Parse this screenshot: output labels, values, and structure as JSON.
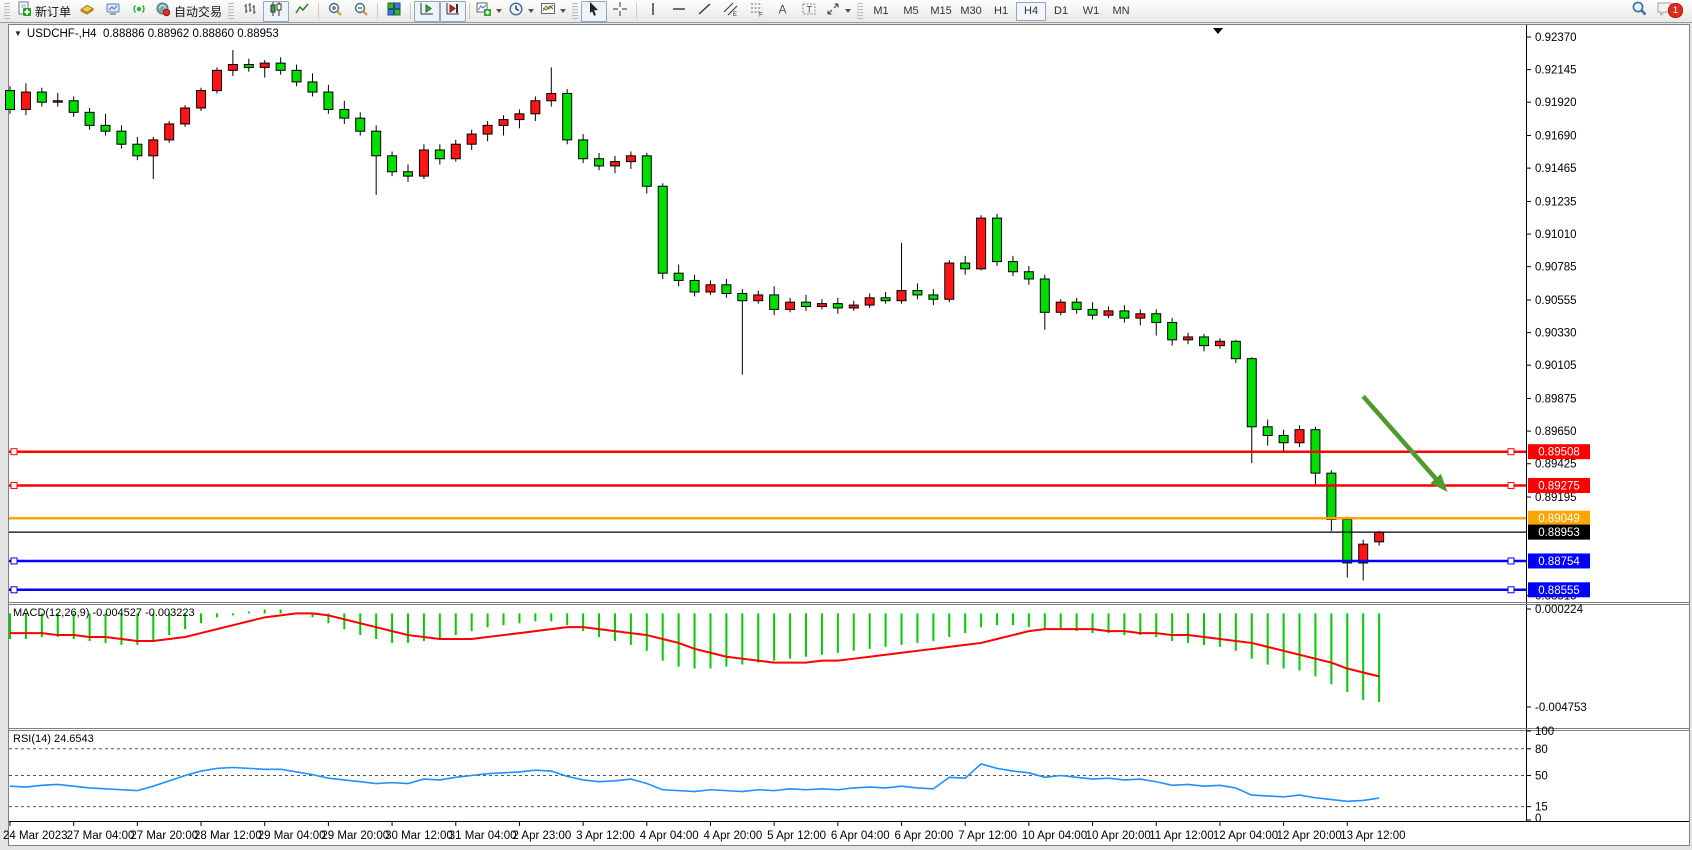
{
  "toolbar": {
    "new_order": "新订单",
    "auto_trading": "自动交易",
    "timeframes": [
      "M1",
      "M5",
      "M15",
      "M30",
      "H1",
      "H4",
      "D1",
      "W1",
      "MN"
    ],
    "active_timeframe": "H4",
    "notification_count": "1"
  },
  "chart_header": {
    "symbol": "USDCHF-,H4",
    "ohlc": "0.88886 0.88962 0.88860 0.88953"
  },
  "chart_data": {
    "type": "candlestick",
    "symbol": "USDCHF-",
    "timeframe": "H4",
    "current_ohlc": {
      "open": 0.88886,
      "high": 0.88962,
      "low": 0.8886,
      "close": 0.88953
    },
    "colors": {
      "bull": "#ff1414",
      "bear": "#00dd00",
      "wick": "#000000",
      "macd_hist": "#00cc00",
      "macd_signal": "#ff0000",
      "rsi_line": "#1e90ff",
      "line_red": "#ff0000",
      "line_orange": "#ffa500",
      "line_blue": "#0000ff",
      "bid_line": "#000000",
      "arrow": "#4e9a2e"
    },
    "price_axis_ticks": [
      {
        "label": "0.92370",
        "value": 0.9237
      },
      {
        "label": "0.92145",
        "value": 0.92145
      },
      {
        "label": "0.91920",
        "value": 0.9192
      },
      {
        "label": "0.91690",
        "value": 0.9169
      },
      {
        "label": "0.91465",
        "value": 0.91465
      },
      {
        "label": "0.91235",
        "value": 0.91235
      },
      {
        "label": "0.91010",
        "value": 0.9101
      },
      {
        "label": "0.90785",
        "value": 0.90785
      },
      {
        "label": "0.90555",
        "value": 0.90555
      },
      {
        "label": "0.90330",
        "value": 0.9033
      },
      {
        "label": "0.90105",
        "value": 0.90105
      },
      {
        "label": "0.89875",
        "value": 0.89875
      },
      {
        "label": "0.89650",
        "value": 0.8965
      },
      {
        "label": "0.89425",
        "value": 0.89425
      },
      {
        "label": "0.89195",
        "value": 0.89195
      },
      {
        "label": "0.88515",
        "value": 0.88515
      }
    ],
    "price_lines": [
      {
        "label": "0.89508",
        "value": 0.89508,
        "color": "#ff0000",
        "handles": true,
        "bid": false
      },
      {
        "label": "0.89275",
        "value": 0.89275,
        "color": "#ff0000",
        "handles": true,
        "bid": false
      },
      {
        "label": "0.89049",
        "value": 0.89049,
        "color": "#ffa500",
        "handles": false,
        "bid": false
      },
      {
        "label": "0.88953",
        "value": 0.88953,
        "color": "#000000",
        "handles": false,
        "bid": true
      },
      {
        "label": "0.88754",
        "value": 0.88754,
        "color": "#0000ff",
        "handles": true,
        "bid": false
      },
      {
        "label": "0.88555",
        "value": 0.88555,
        "color": "#0000ff",
        "handles": true,
        "bid": false
      }
    ],
    "x_labels": [
      "24 Mar 2023",
      "27 Mar 04:00",
      "27 Mar 20:00",
      "28 Mar 12:00",
      "29 Mar 04:00",
      "29 Mar 20:00",
      "30 Mar 12:00",
      "31 Mar 04:00",
      "2 Apr 23:00",
      "3 Apr 12:00",
      "4 Apr 04:00",
      "4 Apr 20:00",
      "5 Apr 12:00",
      "6 Apr 04:00",
      "6 Apr 20:00",
      "7 Apr 12:00",
      "10 Apr 04:00",
      "10 Apr 20:00",
      "11 Apr 12:00",
      "12 Apr 04:00",
      "12 Apr 20:00",
      "13 Apr 12:00"
    ],
    "candles": [
      [
        0.92,
        0.9203,
        0.9184,
        0.9187
      ],
      [
        0.9187,
        0.9205,
        0.9183,
        0.9199
      ],
      [
        0.9199,
        0.9202,
        0.9189,
        0.9192
      ],
      [
        0.9192,
        0.91985,
        0.9189,
        0.9193
      ],
      [
        0.9193,
        0.9196,
        0.9182,
        0.9185
      ],
      [
        0.9185,
        0.9188,
        0.9173,
        0.9176
      ],
      [
        0.9176,
        0.9184,
        0.9169,
        0.9172
      ],
      [
        0.9172,
        0.9176,
        0.916,
        0.9163
      ],
      [
        0.9163,
        0.9168,
        0.9152,
        0.9155
      ],
      [
        0.9155,
        0.9168,
        0.9139,
        0.9166
      ],
      [
        0.9166,
        0.9179,
        0.9164,
        0.9177
      ],
      [
        0.9177,
        0.919,
        0.9175,
        0.9188
      ],
      [
        0.9188,
        0.9202,
        0.9186,
        0.92
      ],
      [
        0.92,
        0.9216,
        0.9198,
        0.9214
      ],
      [
        0.9214,
        0.9228,
        0.921,
        0.9218
      ],
      [
        0.9218,
        0.9222,
        0.9213,
        0.9216
      ],
      [
        0.9216,
        0.9221,
        0.9209,
        0.9219
      ],
      [
        0.9219,
        0.9223,
        0.9211,
        0.9214
      ],
      [
        0.9214,
        0.9218,
        0.9203,
        0.9206
      ],
      [
        0.9206,
        0.9212,
        0.9196,
        0.9199
      ],
      [
        0.9199,
        0.9204,
        0.9184,
        0.9187
      ],
      [
        0.9187,
        0.9193,
        0.9177,
        0.9181
      ],
      [
        0.9181,
        0.9185,
        0.9169,
        0.9172
      ],
      [
        0.9172,
        0.9176,
        0.9128,
        0.9155
      ],
      [
        0.9155,
        0.9158,
        0.9141,
        0.9144
      ],
      [
        0.9144,
        0.9149,
        0.9137,
        0.9141
      ],
      [
        0.9141,
        0.9163,
        0.9139,
        0.9159
      ],
      [
        0.9159,
        0.9163,
        0.9149,
        0.9153
      ],
      [
        0.9153,
        0.9166,
        0.9151,
        0.9163
      ],
      [
        0.9163,
        0.9173,
        0.9159,
        0.917
      ],
      [
        0.917,
        0.9179,
        0.9165,
        0.9176
      ],
      [
        0.9176,
        0.9183,
        0.9169,
        0.918
      ],
      [
        0.918,
        0.9187,
        0.9174,
        0.9184
      ],
      [
        0.9184,
        0.9196,
        0.9179,
        0.9193
      ],
      [
        0.9193,
        0.9216,
        0.9189,
        0.9198
      ],
      [
        0.9198,
        0.9201,
        0.9163,
        0.9166
      ],
      [
        0.9166,
        0.917,
        0.915,
        0.9153
      ],
      [
        0.9153,
        0.9157,
        0.9145,
        0.9148
      ],
      [
        0.9148,
        0.9155,
        0.9143,
        0.9151
      ],
      [
        0.9151,
        0.9158,
        0.9146,
        0.9155
      ],
      [
        0.9155,
        0.9157,
        0.9129,
        0.9134
      ],
      [
        0.9134,
        0.9136,
        0.907,
        0.9074
      ],
      [
        0.9074,
        0.908,
        0.9065,
        0.9069
      ],
      [
        0.9069,
        0.9073,
        0.9058,
        0.9061
      ],
      [
        0.9061,
        0.9069,
        0.9059,
        0.9066
      ],
      [
        0.9066,
        0.907,
        0.9057,
        0.906
      ],
      [
        0.906,
        0.9063,
        0.9004,
        0.9055
      ],
      [
        0.9055,
        0.9062,
        0.9053,
        0.9059
      ],
      [
        0.9059,
        0.9065,
        0.9045,
        0.9049
      ],
      [
        0.9049,
        0.9057,
        0.9047,
        0.9054
      ],
      [
        0.9054,
        0.9059,
        0.9048,
        0.9051
      ],
      [
        0.9051,
        0.9056,
        0.9049,
        0.9053
      ],
      [
        0.9053,
        0.9057,
        0.9046,
        0.905
      ],
      [
        0.905,
        0.9055,
        0.9048,
        0.9052
      ],
      [
        0.9052,
        0.906,
        0.905,
        0.9057
      ],
      [
        0.9057,
        0.9061,
        0.9053,
        0.9055
      ],
      [
        0.9055,
        0.9095,
        0.9053,
        0.9062
      ],
      [
        0.9062,
        0.9067,
        0.9056,
        0.9059
      ],
      [
        0.9059,
        0.9063,
        0.9052,
        0.9056
      ],
      [
        0.9056,
        0.9083,
        0.9054,
        0.9081
      ],
      [
        0.9081,
        0.9086,
        0.9073,
        0.9077
      ],
      [
        0.9077,
        0.9114,
        0.9076,
        0.9112
      ],
      [
        0.9112,
        0.9115,
        0.9079,
        0.9082
      ],
      [
        0.9082,
        0.9086,
        0.9072,
        0.9075
      ],
      [
        0.9075,
        0.9079,
        0.9066,
        0.907
      ],
      [
        0.907,
        0.9073,
        0.9035,
        0.9047
      ],
      [
        0.9047,
        0.9056,
        0.9045,
        0.9054
      ],
      [
        0.9054,
        0.9057,
        0.9046,
        0.9049
      ],
      [
        0.9049,
        0.9054,
        0.9042,
        0.9045
      ],
      [
        0.9045,
        0.9051,
        0.9043,
        0.9048
      ],
      [
        0.9048,
        0.9052,
        0.904,
        0.9043
      ],
      [
        0.9043,
        0.9049,
        0.9038,
        0.9046
      ],
      [
        0.9046,
        0.9049,
        0.9031,
        0.904
      ],
      [
        0.904,
        0.9043,
        0.9024,
        0.9028
      ],
      [
        0.9028,
        0.9033,
        0.9025,
        0.903
      ],
      [
        0.903,
        0.9032,
        0.902,
        0.9024
      ],
      [
        0.9024,
        0.9029,
        0.9022,
        0.9027
      ],
      [
        0.9027,
        0.9028,
        0.9012,
        0.9015
      ],
      [
        0.9015,
        0.9016,
        0.8943,
        0.8968
      ],
      [
        0.8968,
        0.8973,
        0.8955,
        0.8962
      ],
      [
        0.8962,
        0.8966,
        0.895,
        0.8957
      ],
      [
        0.8957,
        0.8969,
        0.8954,
        0.8966
      ],
      [
        0.8966,
        0.8968,
        0.8927,
        0.8936
      ],
      [
        0.8936,
        0.8938,
        0.8896,
        0.8904
      ],
      [
        0.8904,
        0.8906,
        0.8864,
        0.8874
      ],
      [
        0.8874,
        0.889,
        0.8862,
        0.8887
      ],
      [
        0.88886,
        0.88962,
        0.8886,
        0.88953
      ]
    ],
    "macd": {
      "label": "MACD(12,26,9)",
      "values_text": "-0.004527 -0.003223",
      "axis_max": "0.000224",
      "axis_min": "-0.004753",
      "hist": [
        -0.0013,
        -0.0013,
        -0.0012,
        -0.0012,
        -0.0013,
        -0.0014,
        -0.0015,
        -0.0016,
        -0.0016,
        -0.0014,
        -0.0011,
        -0.0008,
        -0.0005,
        -0.0002,
        -0.0001,
        0.0001,
        0.0002,
        0.0002,
        0.0,
        -0.0002,
        -0.0005,
        -0.0008,
        -0.0011,
        -0.0013,
        -0.0015,
        -0.0015,
        -0.0014,
        -0.0013,
        -0.0011,
        -0.0009,
        -0.0007,
        -0.0006,
        -0.0005,
        -0.0004,
        -0.0004,
        -0.0006,
        -0.0009,
        -0.0012,
        -0.0014,
        -0.0016,
        -0.0019,
        -0.0024,
        -0.0027,
        -0.0028,
        -0.0028,
        -0.0027,
        -0.0026,
        -0.0025,
        -0.0024,
        -0.0023,
        -0.0022,
        -0.0021,
        -0.002,
        -0.0019,
        -0.0018,
        -0.0017,
        -0.0016,
        -0.0015,
        -0.0014,
        -0.0012,
        -0.001,
        -0.0007,
        -0.0006,
        -0.0006,
        -0.0007,
        -0.0008,
        -0.0008,
        -0.0009,
        -0.001,
        -0.001,
        -0.0011,
        -0.0011,
        -0.0012,
        -0.0014,
        -0.0015,
        -0.0016,
        -0.0017,
        -0.0019,
        -0.0023,
        -0.0026,
        -0.0028,
        -0.0029,
        -0.0032,
        -0.0036,
        -0.004,
        -0.0044,
        -0.0045
      ],
      "signal": [
        -0.001,
        -0.001,
        -0.001,
        -0.0011,
        -0.0011,
        -0.0012,
        -0.0012,
        -0.0013,
        -0.0014,
        -0.0014,
        -0.0013,
        -0.0012,
        -0.001,
        -0.0008,
        -0.0006,
        -0.0004,
        -0.0002,
        -0.0001,
        0.0,
        0.0,
        -0.0001,
        -0.0003,
        -0.0005,
        -0.0007,
        -0.0009,
        -0.0011,
        -0.0012,
        -0.0013,
        -0.0013,
        -0.0013,
        -0.0012,
        -0.0011,
        -0.001,
        -0.0009,
        -0.0008,
        -0.0007,
        -0.0007,
        -0.0008,
        -0.0009,
        -0.001,
        -0.0011,
        -0.0013,
        -0.0015,
        -0.0018,
        -0.002,
        -0.0022,
        -0.0023,
        -0.0024,
        -0.0025,
        -0.0025,
        -0.0025,
        -0.0024,
        -0.0024,
        -0.0023,
        -0.0022,
        -0.0021,
        -0.002,
        -0.0019,
        -0.0018,
        -0.0017,
        -0.0016,
        -0.0015,
        -0.0013,
        -0.0011,
        -0.0009,
        -0.0008,
        -0.0008,
        -0.0008,
        -0.0008,
        -0.0009,
        -0.0009,
        -0.001,
        -0.001,
        -0.0011,
        -0.0011,
        -0.0012,
        -0.0013,
        -0.0014,
        -0.0015,
        -0.0017,
        -0.0019,
        -0.0021,
        -0.0023,
        -0.0025,
        -0.0028,
        -0.003,
        -0.0032
      ]
    },
    "rsi": {
      "label": "RSI(14)",
      "value_text": "24.6543",
      "axis_labels": [
        "100",
        "80",
        "50",
        "15",
        "0"
      ],
      "axis_values": [
        100,
        80,
        50,
        15,
        0
      ],
      "levels": [
        80,
        50,
        15
      ],
      "values": [
        38,
        37,
        39,
        40,
        38,
        36,
        35,
        34,
        33,
        38,
        44,
        50,
        55,
        58,
        59,
        58,
        57,
        57,
        54,
        51,
        47,
        45,
        43,
        41,
        42,
        41,
        46,
        45,
        48,
        50,
        52,
        53,
        54,
        56,
        55,
        49,
        45,
        43,
        44,
        46,
        41,
        34,
        33,
        32,
        34,
        33,
        32,
        34,
        33,
        35,
        34,
        35,
        34,
        36,
        37,
        36,
        38,
        36,
        35,
        48,
        47,
        63,
        58,
        55,
        53,
        48,
        50,
        48,
        46,
        47,
        45,
        46,
        43,
        39,
        40,
        38,
        39,
        36,
        28,
        27,
        26,
        28,
        25,
        23,
        21,
        22,
        24.65
      ]
    },
    "annotations": {
      "arrow": {
        "from_bar": 85,
        "from_price": 0.8989,
        "to_bar": 90.3,
        "to_price": 0.8923
      }
    }
  }
}
